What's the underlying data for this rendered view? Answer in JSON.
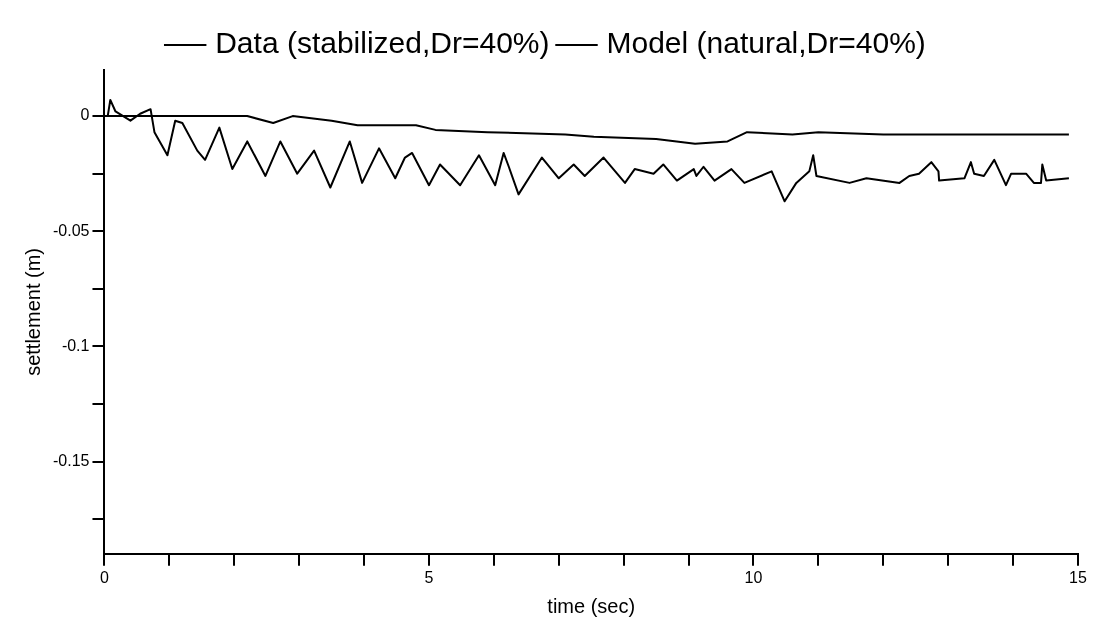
{
  "chart_data": {
    "type": "line",
    "xlabel": "time (sec)",
    "ylabel": "settlement (m)",
    "legend": "top",
    "grid": false,
    "marker": "none",
    "line_style": "solid",
    "xlim": [
      0,
      15
    ],
    "ylim": [
      -0.19,
      0.02
    ],
    "xticks": [
      0,
      {
        "value": 1,
        "label": null
      },
      {
        "value": 2,
        "label": null
      },
      {
        "value": 3,
        "label": null
      },
      {
        "value": 4,
        "label": null
      },
      5,
      {
        "value": 6,
        "label": null
      },
      {
        "value": 7,
        "label": null
      },
      {
        "value": 8,
        "label": null
      },
      {
        "value": 9,
        "label": null
      },
      10,
      {
        "value": 11,
        "label": null
      },
      {
        "value": 12,
        "label": null
      },
      {
        "value": 13,
        "label": null
      },
      {
        "value": 14,
        "label": null
      },
      15
    ],
    "yticks": [
      0,
      {
        "value": -0.025,
        "label": null
      },
      -0.05,
      {
        "value": -0.075,
        "label": null
      },
      -0.1,
      {
        "value": -0.125,
        "label": null
      },
      -0.15,
      {
        "value": -0.175,
        "label": null
      }
    ],
    "series": [
      {
        "name": "Data (stabilized,Dr=40%)",
        "color": "#000000",
        "x": [
          0.05,
          0.09,
          0.17,
          0.4,
          0.55,
          0.71,
          0.77,
          0.97,
          1.09,
          1.2,
          1.43,
          1.55,
          1.77,
          1.97,
          2.2,
          2.48,
          2.71,
          2.97,
          3.23,
          3.48,
          3.78,
          3.97,
          4.23,
          4.48,
          4.63,
          4.74,
          5.0,
          5.17,
          5.48,
          5.77,
          6.02,
          6.15,
          6.23,
          6.38,
          6.74,
          7.0,
          7.23,
          7.4,
          7.69,
          8.02,
          8.17,
          8.46,
          8.61,
          8.82,
          9.08,
          9.12,
          9.23,
          9.4,
          9.66,
          9.86,
          10.28,
          10.48,
          10.66,
          10.86,
          10.92,
          10.97,
          11.48,
          11.74,
          12.25,
          12.4,
          12.55,
          12.74,
          12.85,
          12.86,
          13.25,
          13.35,
          13.4,
          13.55,
          13.71,
          13.89,
          13.97,
          14.2,
          14.32,
          14.43,
          14.45,
          14.51,
          14.86
        ],
        "values": [
          0,
          0.007,
          0.002,
          -0.002,
          0.001,
          0.003,
          -0.007,
          -0.017,
          -0.002,
          -0.003,
          -0.015,
          -0.019,
          -0.005,
          -0.023,
          -0.011,
          -0.026,
          -0.011,
          -0.025,
          -0.015,
          -0.031,
          -0.011,
          -0.029,
          -0.014,
          -0.027,
          -0.018,
          -0.016,
          -0.03,
          -0.021,
          -0.03,
          -0.017,
          -0.03,
          -0.016,
          -0.022,
          -0.034,
          -0.018,
          -0.027,
          -0.021,
          -0.026,
          -0.018,
          -0.029,
          -0.023,
          -0.025,
          -0.021,
          -0.028,
          -0.023,
          -0.026,
          -0.022,
          -0.028,
          -0.023,
          -0.029,
          -0.024,
          -0.037,
          -0.029,
          -0.024,
          -0.017,
          -0.026,
          -0.029,
          -0.027,
          -0.029,
          -0.026,
          -0.025,
          -0.02,
          -0.024,
          -0.028,
          -0.027,
          -0.02,
          -0.025,
          -0.026,
          -0.019,
          -0.03,
          -0.025,
          -0.025,
          -0.029,
          -0.029,
          -0.021,
          -0.028,
          -0.027
        ]
      },
      {
        "name": "Model (natural,Dr=40%)",
        "color": "#000000",
        "x": [
          0,
          1,
          2.2,
          2.6,
          2.9,
          3.5,
          3.9,
          4.8,
          5.1,
          5.9,
          7.1,
          7.54,
          8.5,
          9.1,
          9.6,
          9.9,
          10.6,
          11.0,
          12,
          13,
          14.86
        ],
        "values": [
          0,
          0,
          0,
          -0.003,
          0,
          -0.002,
          -0.004,
          -0.004,
          -0.006,
          -0.007,
          -0.008,
          -0.009,
          -0.01,
          -0.012,
          -0.011,
          -0.007,
          -0.008,
          -0.007,
          -0.008,
          -0.008,
          -0.008
        ]
      }
    ]
  }
}
